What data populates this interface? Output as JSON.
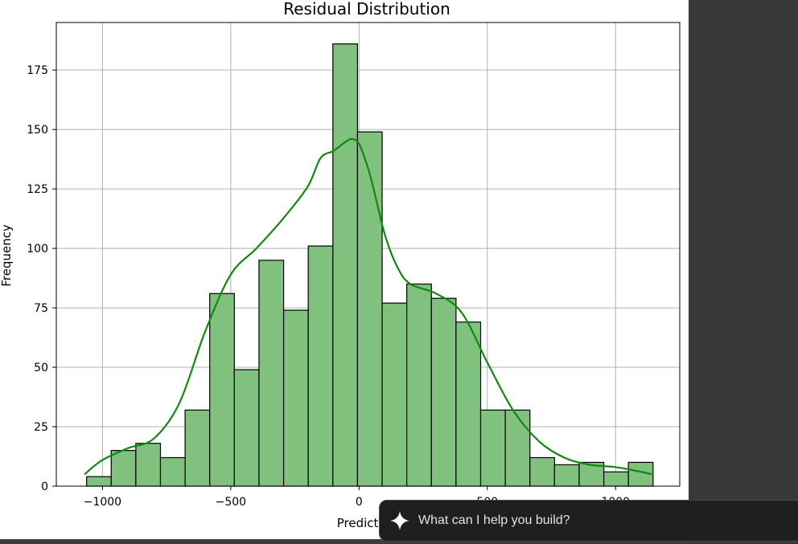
{
  "chart_data": {
    "type": "bar",
    "title": "Residual Distribution",
    "xlabel": "Prediction",
    "ylabel": "Frequency",
    "xlim": [
      -1180,
      1250
    ],
    "ylim": [
      0,
      195
    ],
    "grid": true,
    "x_ticks": [
      {
        "value": -1000,
        "label": "−1000"
      },
      {
        "value": -500,
        "label": "−500"
      },
      {
        "value": 0,
        "label": "0"
      },
      {
        "value": 500,
        "label": "500"
      },
      {
        "value": 1000,
        "label": "1000"
      }
    ],
    "y_ticks": [
      {
        "value": 0,
        "label": "0"
      },
      {
        "value": 25,
        "label": "25"
      },
      {
        "value": 50,
        "label": "50"
      },
      {
        "value": 75,
        "label": "75"
      },
      {
        "value": 100,
        "label": "100"
      },
      {
        "value": 125,
        "label": "125"
      },
      {
        "value": 150,
        "label": "150"
      },
      {
        "value": 175,
        "label": "175"
      }
    ],
    "bins_start": -1062,
    "bin_width": 96,
    "counts": [
      4,
      15,
      18,
      12,
      32,
      81,
      49,
      95,
      74,
      101,
      186,
      149,
      77,
      85,
      79,
      69,
      32,
      32,
      12,
      9,
      10,
      6,
      10
    ],
    "kde": {
      "x": [
        -1070,
        -1000,
        -900,
        -800,
        -700,
        -600,
        -500,
        -400,
        -300,
        -200,
        -150,
        -100,
        -50,
        -25,
        0,
        25,
        50,
        100,
        150,
        200,
        300,
        400,
        500,
        600,
        700,
        800,
        900,
        1000,
        1100,
        1140
      ],
      "y": [
        5,
        11,
        16,
        20,
        35,
        65,
        89,
        100,
        112,
        126,
        138,
        141,
        145,
        146,
        144,
        137,
        128,
        106,
        92,
        85,
        81,
        73,
        52,
        32,
        19,
        12,
        9,
        8,
        6,
        5
      ]
    },
    "bar_color": "#81c17e",
    "bar_edge": "#000000",
    "kde_color": "#118811"
  },
  "chat": {
    "placeholder": "What can I help you build?"
  }
}
